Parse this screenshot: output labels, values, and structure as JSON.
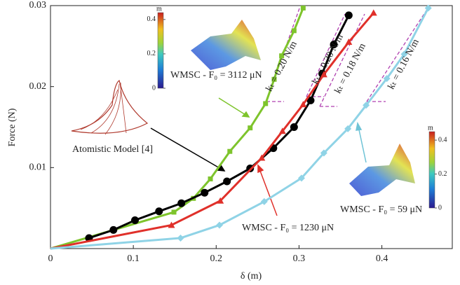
{
  "chart_data": {
    "type": "line",
    "x_label": "δ (m)",
    "y_label": "Force (N)",
    "xlim": [
      0,
      0.485
    ],
    "ylim": [
      0,
      0.03
    ],
    "xticks": [
      0,
      0.1,
      0.2,
      0.3,
      0.4
    ],
    "yticks": [
      0.01,
      0.02,
      0.03
    ],
    "series": [
      {
        "name": "WMSC - F₀ = 3112 μN",
        "color": "#7ec42c",
        "marker": "square",
        "x": [
          0,
          0.149,
          0.1725,
          0.193,
          0.2165,
          0.241,
          0.2596,
          0.27,
          0.279,
          0.294,
          0.305
        ],
        "values": [
          0,
          0.0045,
          0.0062,
          0.0086,
          0.012,
          0.0149,
          0.0179,
          0.0209,
          0.0238,
          0.0269,
          0.0297
        ]
      },
      {
        "name": "Atomistic Model [4]",
        "color": "#000000",
        "marker": "circle",
        "x": [
          0.0465,
          0.076,
          0.102,
          0.131,
          0.158,
          0.186,
          0.213,
          0.241,
          0.269,
          0.294,
          0.314,
          0.328,
          0.342,
          0.36
        ],
        "values": [
          0.0013,
          0.0023,
          0.0035,
          0.0046,
          0.0056,
          0.0069,
          0.0083,
          0.0099,
          0.0124,
          0.015,
          0.0183,
          0.0216,
          0.0252,
          0.0288
        ]
      },
      {
        "name": "WMSC - F₀ = 1230 μN",
        "color": "#e0302a",
        "marker": "triangle",
        "x": [
          0,
          0.146,
          0.205,
          0.255,
          0.28,
          0.305,
          0.33,
          0.36,
          0.39
        ],
        "values": [
          0,
          0.0029,
          0.0059,
          0.0112,
          0.0145,
          0.0178,
          0.0215,
          0.0255,
          0.0291
        ]
      },
      {
        "name": "WMSC - F₀ = 59 μN",
        "color": "#8fd3e6",
        "marker": "diamond",
        "x": [
          0,
          0.157,
          0.204,
          0.258,
          0.303,
          0.33,
          0.359,
          0.381,
          0.406,
          0.427,
          0.456
        ],
        "values": [
          0,
          0.0013,
          0.0029,
          0.0058,
          0.0087,
          0.0118,
          0.0148,
          0.0177,
          0.021,
          0.024,
          0.0297
        ]
      }
    ],
    "annotations": [
      "kₜ = 0.20 N/m",
      "kₜ = 0.20 N/m",
      "kₜ = 0.18 N/m",
      "kₜ = 0.16 N/m"
    ],
    "colorbars": [
      {
        "label": "m",
        "lim": [
          0,
          0.44
        ],
        "ticks": [
          0,
          0.2,
          0.4
        ]
      },
      {
        "label": "m",
        "lim": [
          0,
          0.45
        ],
        "ticks": [
          0,
          0.2,
          0.4
        ]
      }
    ]
  }
}
